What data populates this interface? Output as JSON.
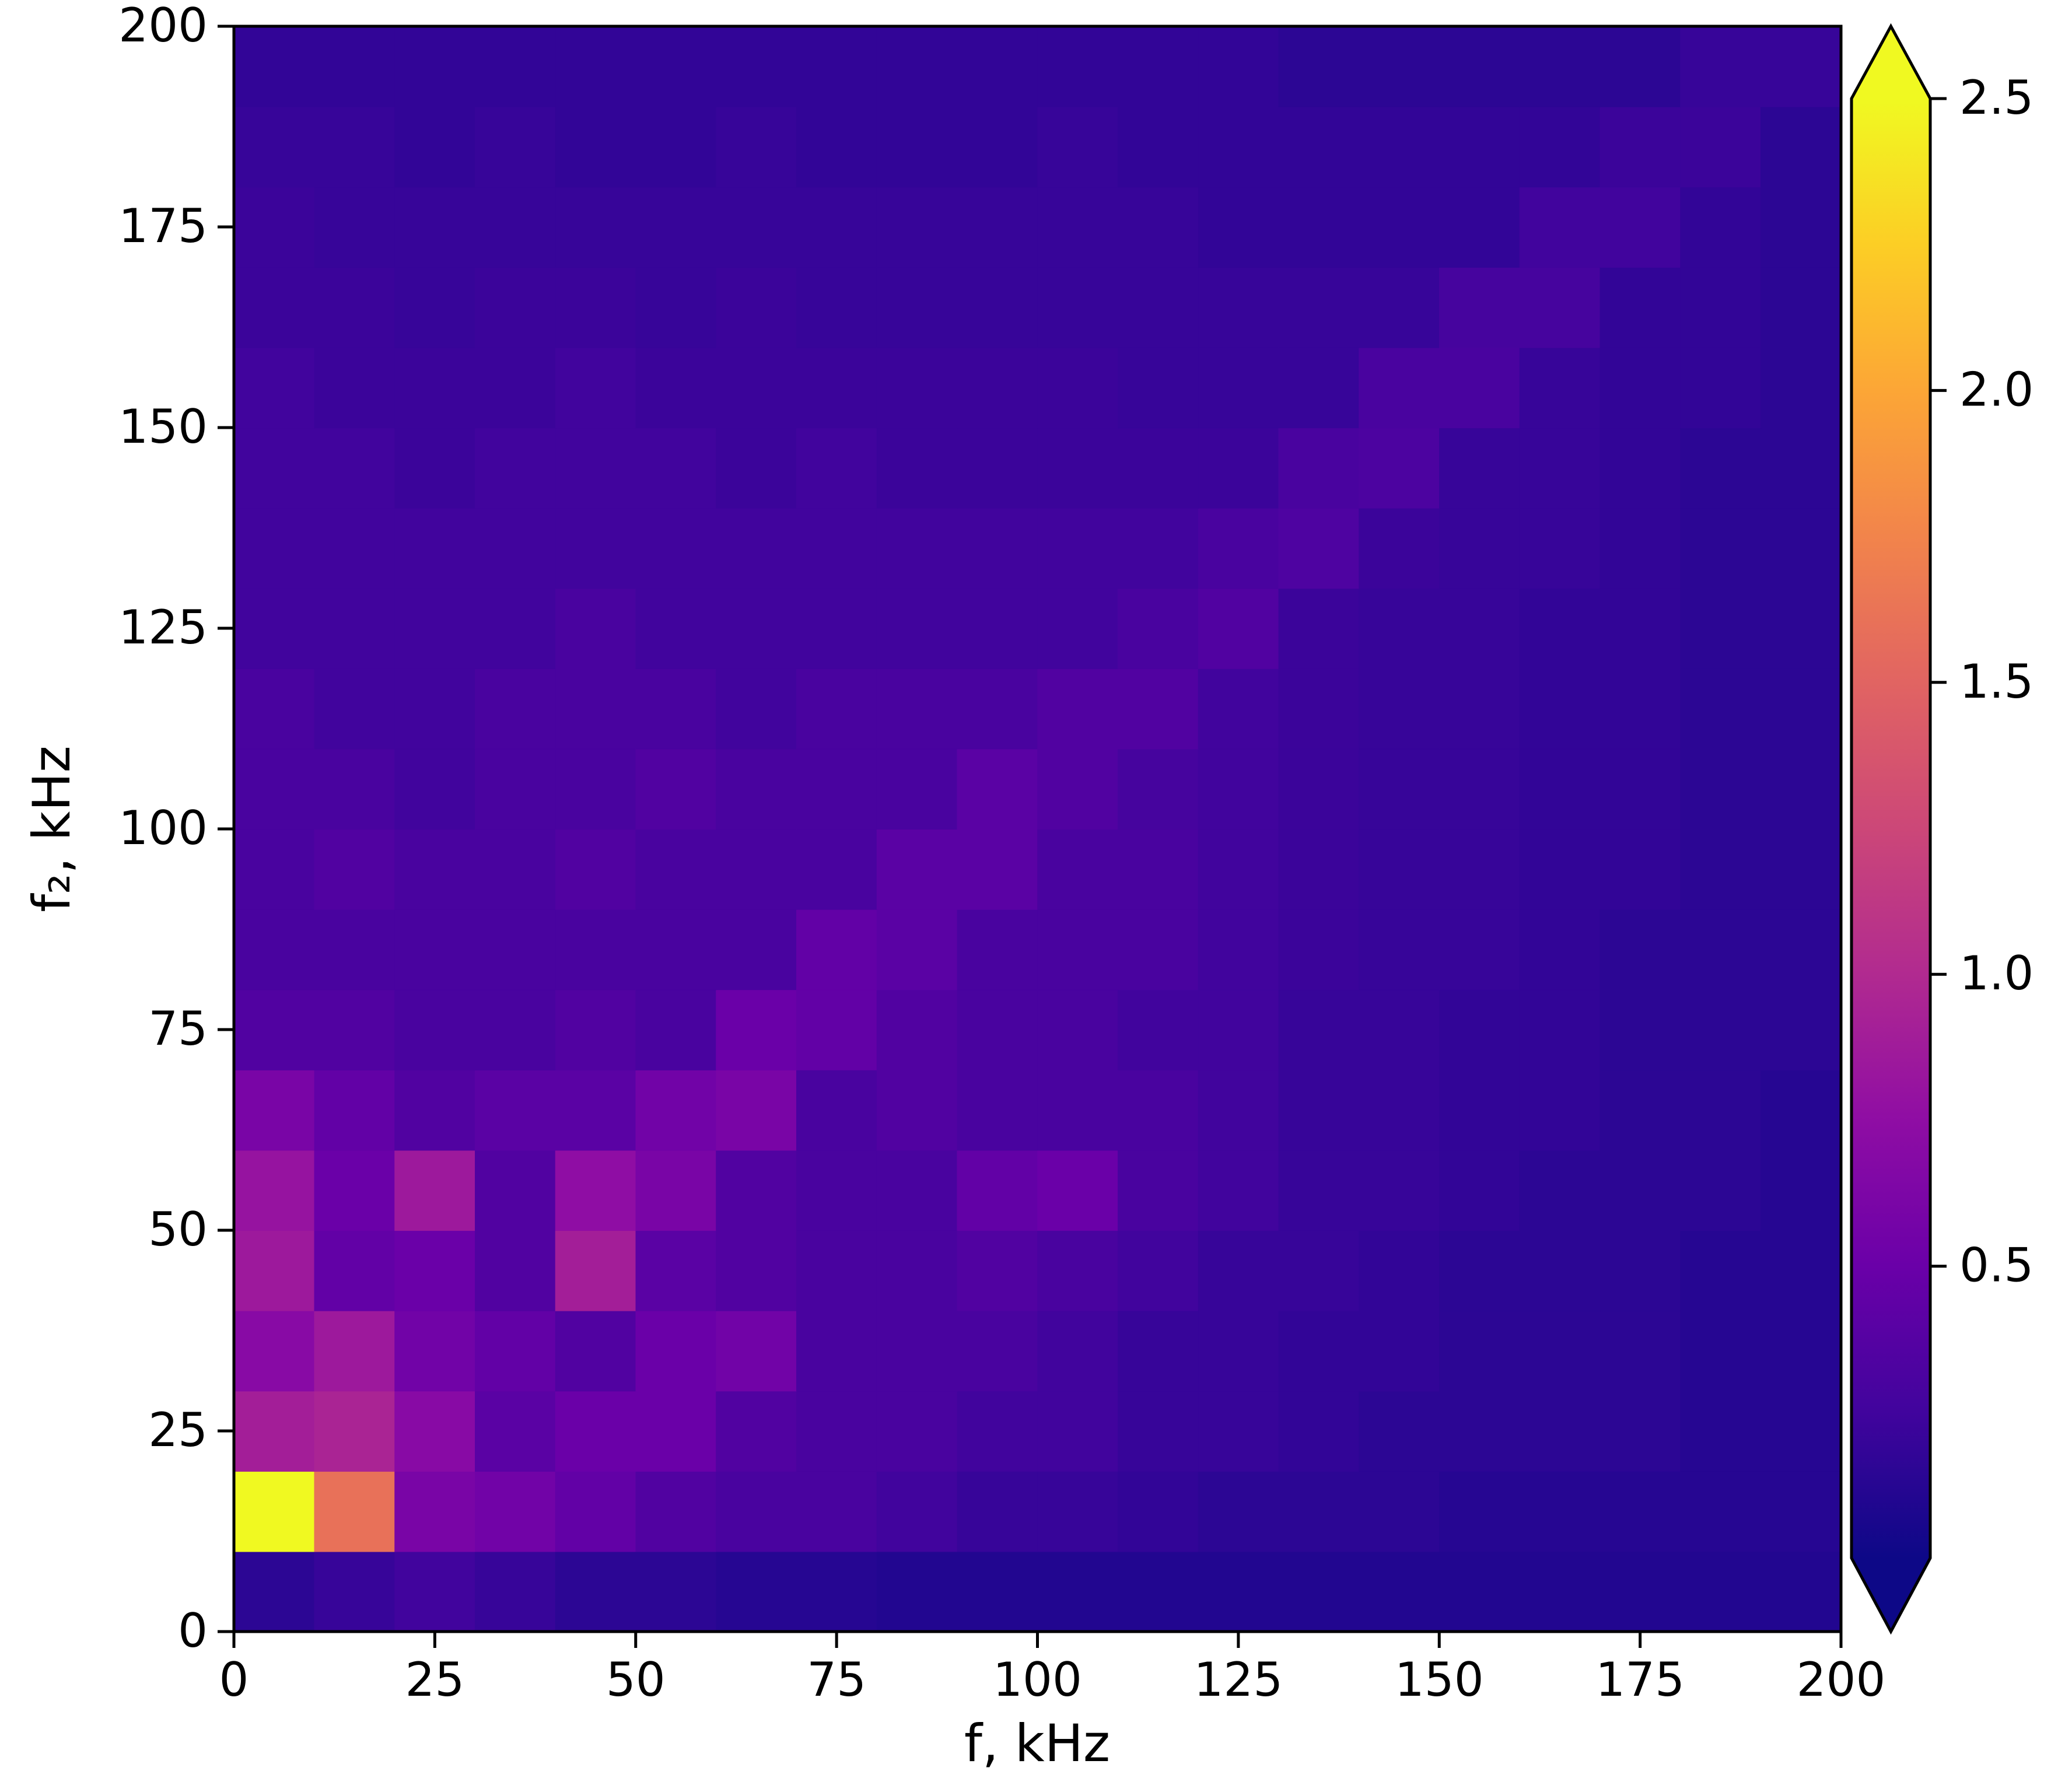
{
  "chart_data": {
    "type": "heatmap",
    "xlabel": "f, kHz",
    "ylabel": "f₂, kHz",
    "x": [
      5,
      15,
      25,
      35,
      45,
      55,
      65,
      75,
      85,
      95,
      105,
      115,
      125,
      135,
      145,
      155,
      165,
      175,
      185,
      195
    ],
    "y": [
      5,
      15,
      25,
      35,
      45,
      55,
      65,
      75,
      85,
      95,
      105,
      115,
      125,
      135,
      145,
      155,
      165,
      175,
      185,
      195
    ],
    "z": [
      [
        0.15,
        0.2,
        0.25,
        0.2,
        0.15,
        0.15,
        0.12,
        0.12,
        0.1,
        0.1,
        0.1,
        0.1,
        0.1,
        0.1,
        0.1,
        0.1,
        0.1,
        0.1,
        0.1,
        0.1
      ],
      [
        2.6,
        1.6,
        0.6,
        0.55,
        0.45,
        0.35,
        0.3,
        0.3,
        0.25,
        0.2,
        0.2,
        0.18,
        0.15,
        0.15,
        0.15,
        0.12,
        0.12,
        0.12,
        0.12,
        0.12
      ],
      [
        0.9,
        0.95,
        0.7,
        0.4,
        0.5,
        0.5,
        0.35,
        0.3,
        0.3,
        0.25,
        0.25,
        0.2,
        0.2,
        0.18,
        0.15,
        0.15,
        0.15,
        0.15,
        0.12,
        0.12
      ],
      [
        0.7,
        0.85,
        0.55,
        0.45,
        0.35,
        0.5,
        0.55,
        0.3,
        0.3,
        0.3,
        0.25,
        0.2,
        0.2,
        0.18,
        0.18,
        0.15,
        0.15,
        0.15,
        0.12,
        0.12
      ],
      [
        0.85,
        0.45,
        0.5,
        0.35,
        0.9,
        0.4,
        0.35,
        0.3,
        0.3,
        0.35,
        0.3,
        0.25,
        0.2,
        0.2,
        0.18,
        0.15,
        0.15,
        0.15,
        0.12,
        0.12
      ],
      [
        0.8,
        0.5,
        0.85,
        0.35,
        0.75,
        0.6,
        0.35,
        0.3,
        0.3,
        0.45,
        0.5,
        0.3,
        0.25,
        0.2,
        0.2,
        0.18,
        0.15,
        0.15,
        0.15,
        0.12
      ],
      [
        0.6,
        0.45,
        0.35,
        0.4,
        0.4,
        0.55,
        0.6,
        0.3,
        0.35,
        0.3,
        0.3,
        0.3,
        0.25,
        0.2,
        0.2,
        0.18,
        0.18,
        0.15,
        0.15,
        0.12
      ],
      [
        0.35,
        0.35,
        0.3,
        0.3,
        0.35,
        0.3,
        0.5,
        0.45,
        0.35,
        0.3,
        0.3,
        0.25,
        0.25,
        0.2,
        0.2,
        0.18,
        0.18,
        0.15,
        0.15,
        0.15
      ],
      [
        0.3,
        0.3,
        0.3,
        0.3,
        0.3,
        0.3,
        0.3,
        0.45,
        0.4,
        0.3,
        0.3,
        0.3,
        0.25,
        0.22,
        0.2,
        0.2,
        0.18,
        0.15,
        0.15,
        0.15
      ],
      [
        0.3,
        0.35,
        0.3,
        0.3,
        0.35,
        0.3,
        0.3,
        0.3,
        0.4,
        0.4,
        0.3,
        0.3,
        0.25,
        0.22,
        0.2,
        0.2,
        0.18,
        0.18,
        0.15,
        0.15
      ],
      [
        0.3,
        0.3,
        0.25,
        0.3,
        0.3,
        0.35,
        0.3,
        0.3,
        0.3,
        0.4,
        0.35,
        0.28,
        0.25,
        0.22,
        0.2,
        0.2,
        0.18,
        0.18,
        0.15,
        0.15
      ],
      [
        0.3,
        0.25,
        0.25,
        0.3,
        0.3,
        0.3,
        0.25,
        0.3,
        0.3,
        0.3,
        0.35,
        0.35,
        0.25,
        0.22,
        0.2,
        0.2,
        0.18,
        0.18,
        0.15,
        0.15
      ],
      [
        0.25,
        0.25,
        0.25,
        0.25,
        0.3,
        0.25,
        0.25,
        0.25,
        0.25,
        0.25,
        0.25,
        0.3,
        0.35,
        0.22,
        0.2,
        0.2,
        0.18,
        0.18,
        0.15,
        0.15
      ],
      [
        0.25,
        0.25,
        0.25,
        0.25,
        0.25,
        0.25,
        0.25,
        0.25,
        0.25,
        0.25,
        0.25,
        0.25,
        0.3,
        0.33,
        0.22,
        0.2,
        0.2,
        0.18,
        0.15,
        0.15
      ],
      [
        0.25,
        0.25,
        0.22,
        0.25,
        0.25,
        0.25,
        0.22,
        0.25,
        0.22,
        0.22,
        0.22,
        0.22,
        0.22,
        0.3,
        0.32,
        0.2,
        0.2,
        0.18,
        0.15,
        0.15
      ],
      [
        0.25,
        0.22,
        0.22,
        0.22,
        0.25,
        0.22,
        0.22,
        0.22,
        0.22,
        0.22,
        0.22,
        0.2,
        0.2,
        0.2,
        0.3,
        0.3,
        0.2,
        0.18,
        0.18,
        0.15
      ],
      [
        0.22,
        0.22,
        0.2,
        0.22,
        0.22,
        0.2,
        0.22,
        0.2,
        0.2,
        0.2,
        0.2,
        0.2,
        0.2,
        0.2,
        0.2,
        0.28,
        0.28,
        0.18,
        0.18,
        0.15
      ],
      [
        0.22,
        0.2,
        0.2,
        0.2,
        0.2,
        0.2,
        0.2,
        0.2,
        0.2,
        0.2,
        0.2,
        0.2,
        0.18,
        0.18,
        0.18,
        0.18,
        0.25,
        0.25,
        0.18,
        0.15
      ],
      [
        0.2,
        0.2,
        0.18,
        0.2,
        0.18,
        0.18,
        0.2,
        0.18,
        0.18,
        0.18,
        0.2,
        0.18,
        0.18,
        0.18,
        0.18,
        0.18,
        0.18,
        0.22,
        0.22,
        0.15
      ],
      [
        0.18,
        0.18,
        0.18,
        0.18,
        0.18,
        0.18,
        0.18,
        0.18,
        0.18,
        0.18,
        0.18,
        0.18,
        0.18,
        0.15,
        0.15,
        0.15,
        0.15,
        0.15,
        0.2,
        0.2
      ]
    ],
    "xlim": [
      0,
      200
    ],
    "ylim": [
      0,
      200
    ],
    "xticks": [
      0,
      25,
      50,
      75,
      100,
      125,
      150,
      175,
      200
    ],
    "yticks": [
      0,
      25,
      50,
      75,
      100,
      125,
      150,
      175,
      200
    ],
    "colormap": "plasma",
    "clim": [
      0,
      2.5
    ],
    "colorbar_extend": "both",
    "cticks": [
      0.5,
      {
        "value": 1,
        "label": "1.0"
      },
      1.5,
      {
        "value": 2,
        "label": "2.0"
      },
      2.5
    ]
  }
}
